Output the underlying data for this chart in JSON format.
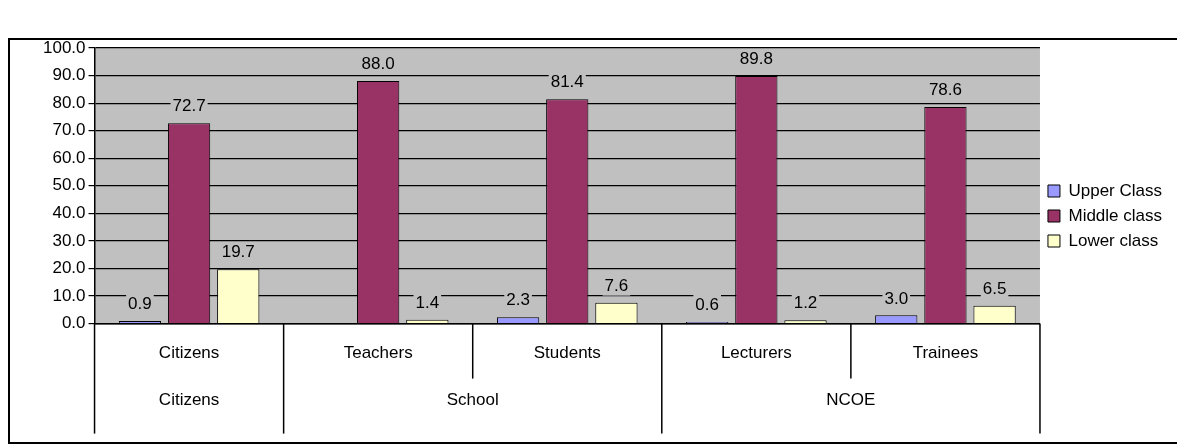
{
  "chart_data": {
    "type": "bar",
    "categories": [
      "Citizens",
      "Teachers",
      "Students",
      "Lecturers",
      "Trainees"
    ],
    "series": [
      {
        "name": "Upper Class",
        "color": "#9999ff",
        "values": [
          0.9,
          null,
          2.3,
          0.6,
          3.0
        ],
        "value_labels": [
          "0.9",
          null,
          "2.3",
          "0.6",
          "3.0"
        ]
      },
      {
        "name": "Middle class",
        "color": "#993366",
        "values": [
          72.7,
          88.0,
          81.4,
          89.8,
          78.6
        ],
        "value_labels": [
          "72.7",
          "88.0",
          "81.4",
          "89.8",
          "78.6"
        ]
      },
      {
        "name": "Lower class",
        "color": "#ffffcc",
        "values": [
          19.7,
          1.4,
          7.6,
          1.2,
          6.5
        ],
        "value_labels": [
          "19.7",
          "1.4",
          "7.6",
          "1.2",
          "6.5"
        ]
      }
    ],
    "ylim": [
      0,
      100
    ],
    "yticks": [
      {
        "value": 0,
        "label": "0.0"
      },
      {
        "value": 10,
        "label": "10.0"
      },
      {
        "value": 20,
        "label": "20.0"
      },
      {
        "value": 30,
        "label": "30.0"
      },
      {
        "value": 40,
        "label": "40.0"
      },
      {
        "value": 50,
        "label": "50.0"
      },
      {
        "value": 60,
        "label": "60.0"
      },
      {
        "value": 70,
        "label": "70.0"
      },
      {
        "value": 80,
        "label": "80.0"
      },
      {
        "value": 90,
        "label": "90.0"
      },
      {
        "value": 100,
        "label": "100.0"
      }
    ],
    "grid": "y",
    "legend": "right",
    "annotations": [
      "Citizens",
      "School",
      "NCOE"
    ]
  }
}
